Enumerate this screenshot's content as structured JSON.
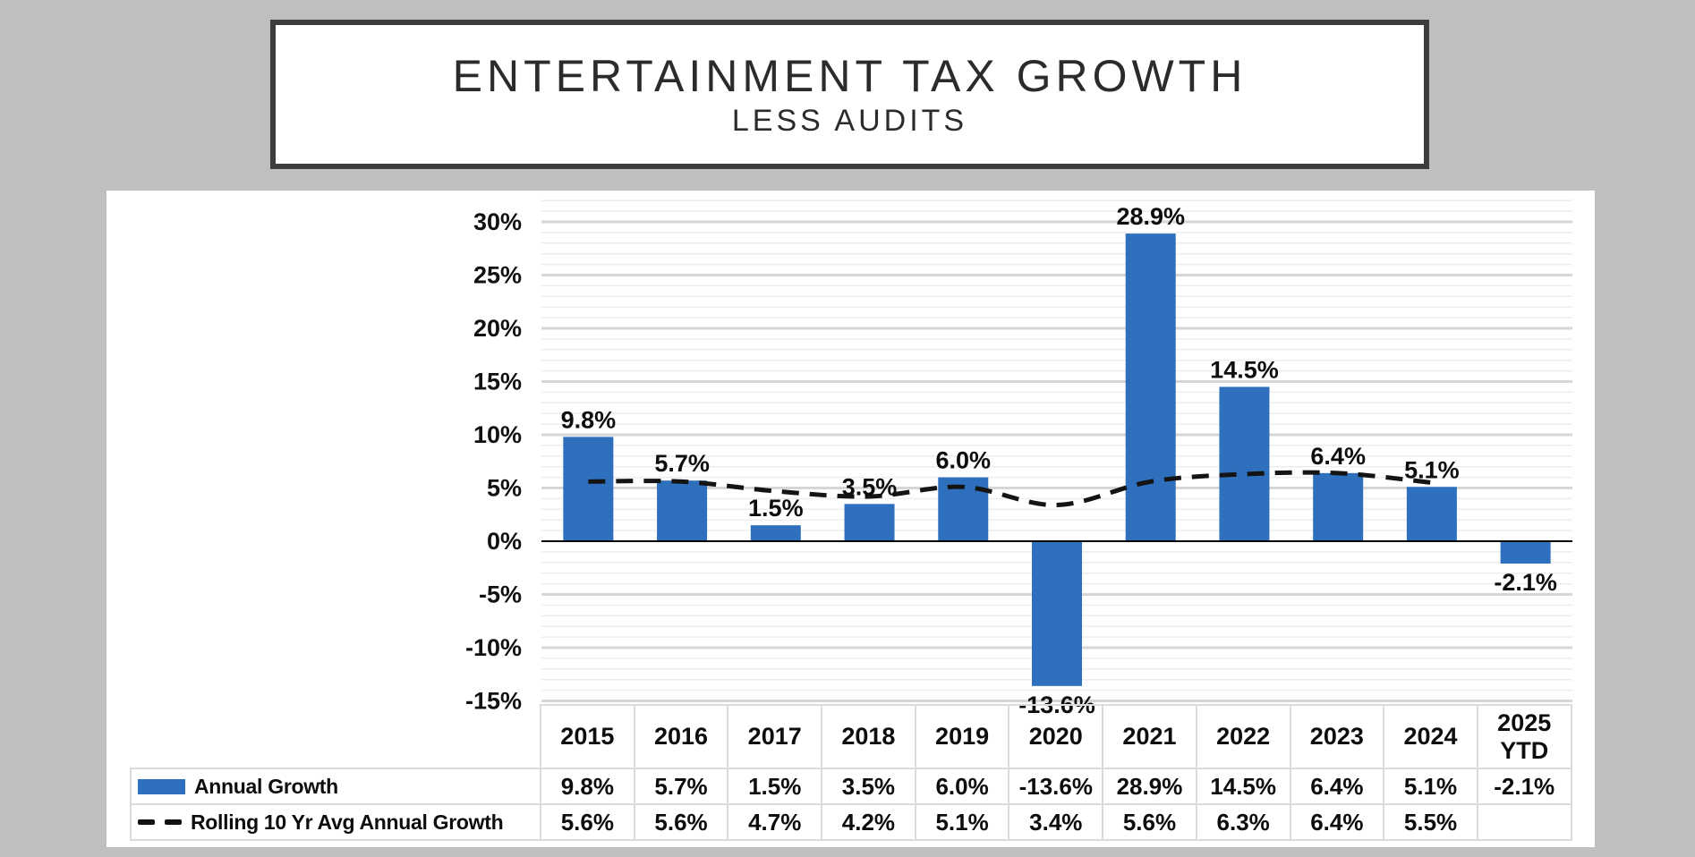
{
  "title": {
    "line1": "ENTERTAINMENT TAX GROWTH",
    "line2": "LESS AUDITS"
  },
  "colors": {
    "bar_blue": "#2E70BE",
    "line_black": "#141414",
    "page_background": "#BFBFBF",
    "title_border": "#3C3C3C",
    "grid_major": "#D6D6D6",
    "grid_minor": "#EDEDED",
    "table_border": "#DBDBDB",
    "zero_axis": "#000000"
  },
  "chart_data": {
    "type": "bar",
    "title": "Entertainment Tax Growth Less Audits",
    "categories": [
      "2015",
      "2016",
      "2017",
      "2018",
      "2019",
      "2020",
      "2021",
      "2022",
      "2023",
      "2024",
      "2025 YTD"
    ],
    "series": [
      {
        "name": "Annual Growth",
        "type": "bar",
        "values": [
          9.8,
          5.7,
          1.5,
          3.5,
          6.0,
          -13.6,
          28.9,
          14.5,
          6.4,
          5.1,
          -2.1
        ],
        "labels": [
          "9.8%",
          "5.7%",
          "1.5%",
          "3.5%",
          "6.0%",
          "-13.6%",
          "28.9%",
          "14.5%",
          "6.4%",
          "5.1%",
          "-2.1%"
        ]
      },
      {
        "name": "Rolling 10 Yr Avg Annual Growth",
        "type": "line",
        "dashed": true,
        "values": [
          5.6,
          5.6,
          4.7,
          4.2,
          5.1,
          3.4,
          5.6,
          6.3,
          6.4,
          5.5,
          null
        ],
        "labels": [
          "5.6%",
          "5.6%",
          "4.7%",
          "4.2%",
          "5.1%",
          "3.4%",
          "5.6%",
          "6.3%",
          "6.4%",
          "5.5%",
          ""
        ]
      }
    ],
    "y_axis": {
      "min": -15,
      "max": 30,
      "step": 5,
      "tick_values": [
        30,
        25,
        20,
        15,
        10,
        5,
        0,
        -5,
        -10,
        -15
      ],
      "tick_labels": [
        "30%",
        "25%",
        "20%",
        "15%",
        "10%",
        "5%",
        "0%",
        "-5%",
        "-10%",
        "-15%"
      ]
    },
    "grid": true,
    "legend_position": "table-left"
  }
}
